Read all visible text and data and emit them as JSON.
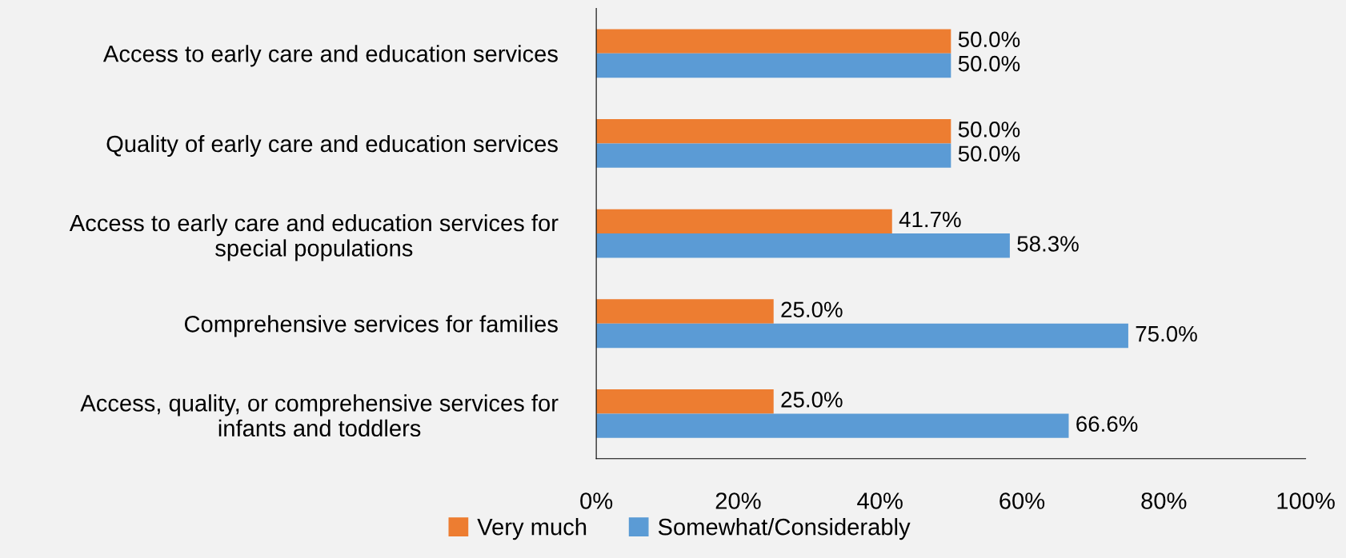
{
  "chart_data": {
    "type": "bar",
    "orientation": "horizontal",
    "categories": [
      "Access to early care and education services",
      "Quality of early care and education services",
      "Access to early care and education services for\nspecial populations",
      "Comprehensive services for families",
      "Access, quality, or comprehensive services for\ninfants and toddlers"
    ],
    "series": [
      {
        "name": "Very much",
        "color": "#ed7d31",
        "values": [
          50.0,
          50.0,
          41.7,
          25.0,
          25.0
        ],
        "value_labels": [
          "50.0%",
          "50.0%",
          "41.7%",
          "25.0%",
          "25.0%"
        ]
      },
      {
        "name": "Somewhat/Considerably",
        "color": "#5b9bd5",
        "values": [
          50.0,
          50.0,
          58.3,
          75.0,
          66.6
        ],
        "value_labels": [
          "50.0%",
          "50.0%",
          "58.3%",
          "75.0%",
          "66.6%"
        ]
      }
    ],
    "xlim": [
      0,
      100
    ],
    "xticks": [
      {
        "value": 0,
        "label": "0%"
      },
      {
        "value": 20,
        "label": "20%"
      },
      {
        "value": 40,
        "label": "40%"
      },
      {
        "value": 60,
        "label": "60%"
      },
      {
        "value": 80,
        "label": "80%"
      },
      {
        "value": 100,
        "label": "100%"
      }
    ],
    "grid": false,
    "legend": "bottom"
  }
}
